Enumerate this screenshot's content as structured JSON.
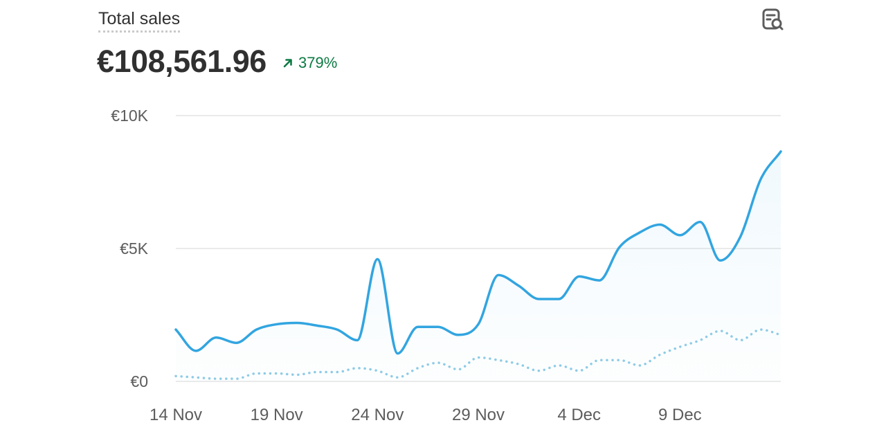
{
  "header": {
    "title": "Total sales",
    "total": "€108,561.96",
    "change": "379%",
    "report_icon": "report-search-icon",
    "change_icon": "arrow-up-right-icon"
  },
  "colors": {
    "primary_line": "#32a5e0",
    "comparison_line": "#8fcbe6",
    "positive": "#0c7a43",
    "grid": "#e3e3e3"
  },
  "chart_data": {
    "type": "line",
    "title": "Total sales",
    "ylim": [
      0,
      10000
    ],
    "yticks": [
      {
        "value": 0,
        "label": "€0"
      },
      {
        "value": 5000,
        "label": "€5K"
      },
      {
        "value": 10000,
        "label": "€10K"
      }
    ],
    "x": [
      "14 Nov",
      "15 Nov",
      "16 Nov",
      "17 Nov",
      "18 Nov",
      "19 Nov",
      "20 Nov",
      "21 Nov",
      "22 Nov",
      "23 Nov",
      "24 Nov",
      "25 Nov",
      "26 Nov",
      "27 Nov",
      "28 Nov",
      "29 Nov",
      "30 Nov",
      "1 Dec",
      "2 Dec",
      "3 Dec",
      "4 Dec",
      "5 Dec",
      "6 Dec",
      "7 Dec",
      "8 Dec",
      "9 Dec",
      "10 Dec",
      "11 Dec",
      "12 Dec",
      "13 Dec",
      "14 Dec"
    ],
    "xticks": [
      "14 Nov",
      "19 Nov",
      "24 Nov",
      "29 Nov",
      "4 Dec",
      "9 Dec"
    ],
    "grid": true,
    "legend": "none",
    "series": [
      {
        "style": "solid",
        "values": [
          1950,
          1150,
          1650,
          1450,
          1950,
          2150,
          2200,
          2100,
          1950,
          1550,
          4600,
          1050,
          2050,
          2050,
          1750,
          2150,
          4000,
          3600,
          3100,
          3100,
          3950,
          3800,
          5050,
          5600,
          5900,
          5500,
          6000,
          4550,
          5450,
          7600,
          8650
        ]
      },
      {
        "style": "dotted",
        "values": [
          200,
          150,
          100,
          100,
          300,
          300,
          250,
          350,
          350,
          500,
          400,
          150,
          500,
          700,
          450,
          900,
          800,
          650,
          400,
          600,
          400,
          800,
          800,
          600,
          1000,
          1300,
          1550,
          1900,
          1550,
          1950,
          1750
        ]
      }
    ]
  }
}
